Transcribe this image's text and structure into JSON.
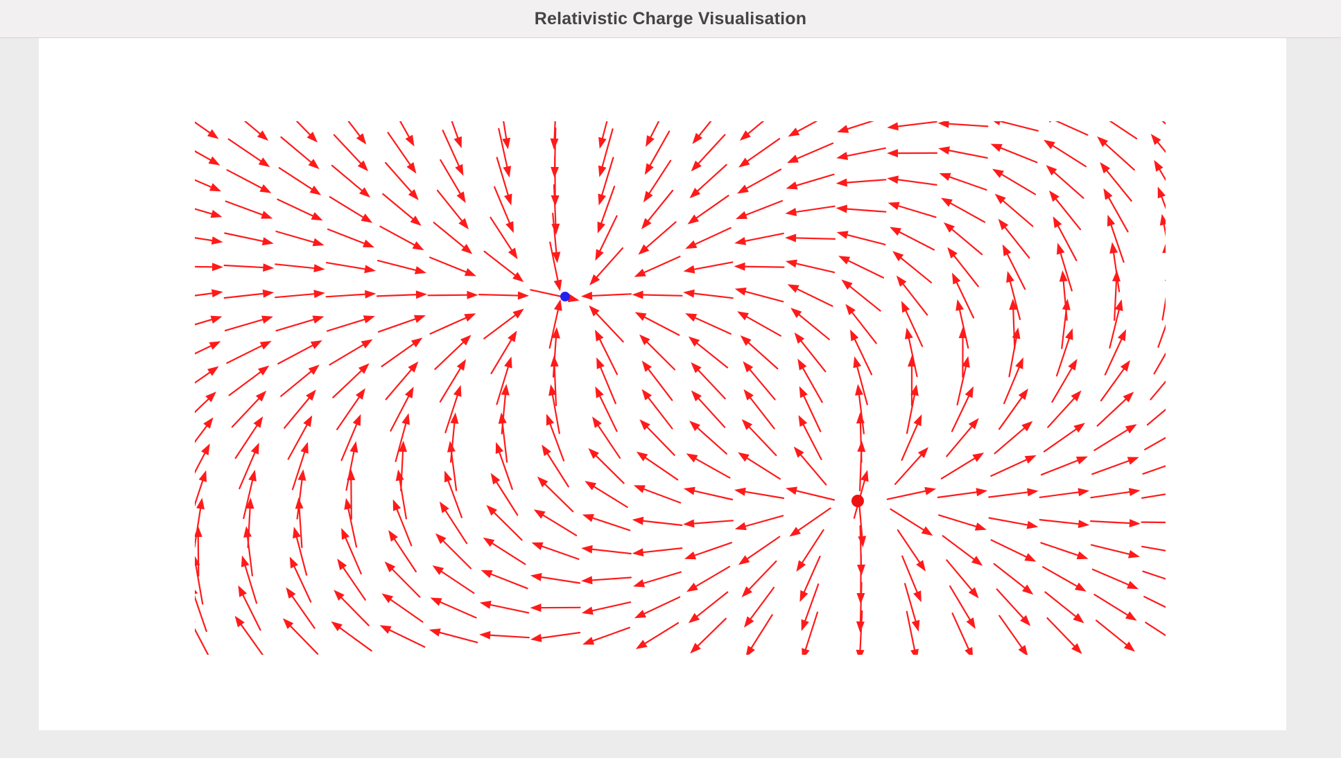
{
  "window": {
    "title": "Relativistic Charge Visualisation"
  },
  "visualisation": {
    "arrow_color": "#ff1a1a",
    "blue_charge_color": "#2222ee",
    "red_charge_color": "#ee1111"
  }
}
